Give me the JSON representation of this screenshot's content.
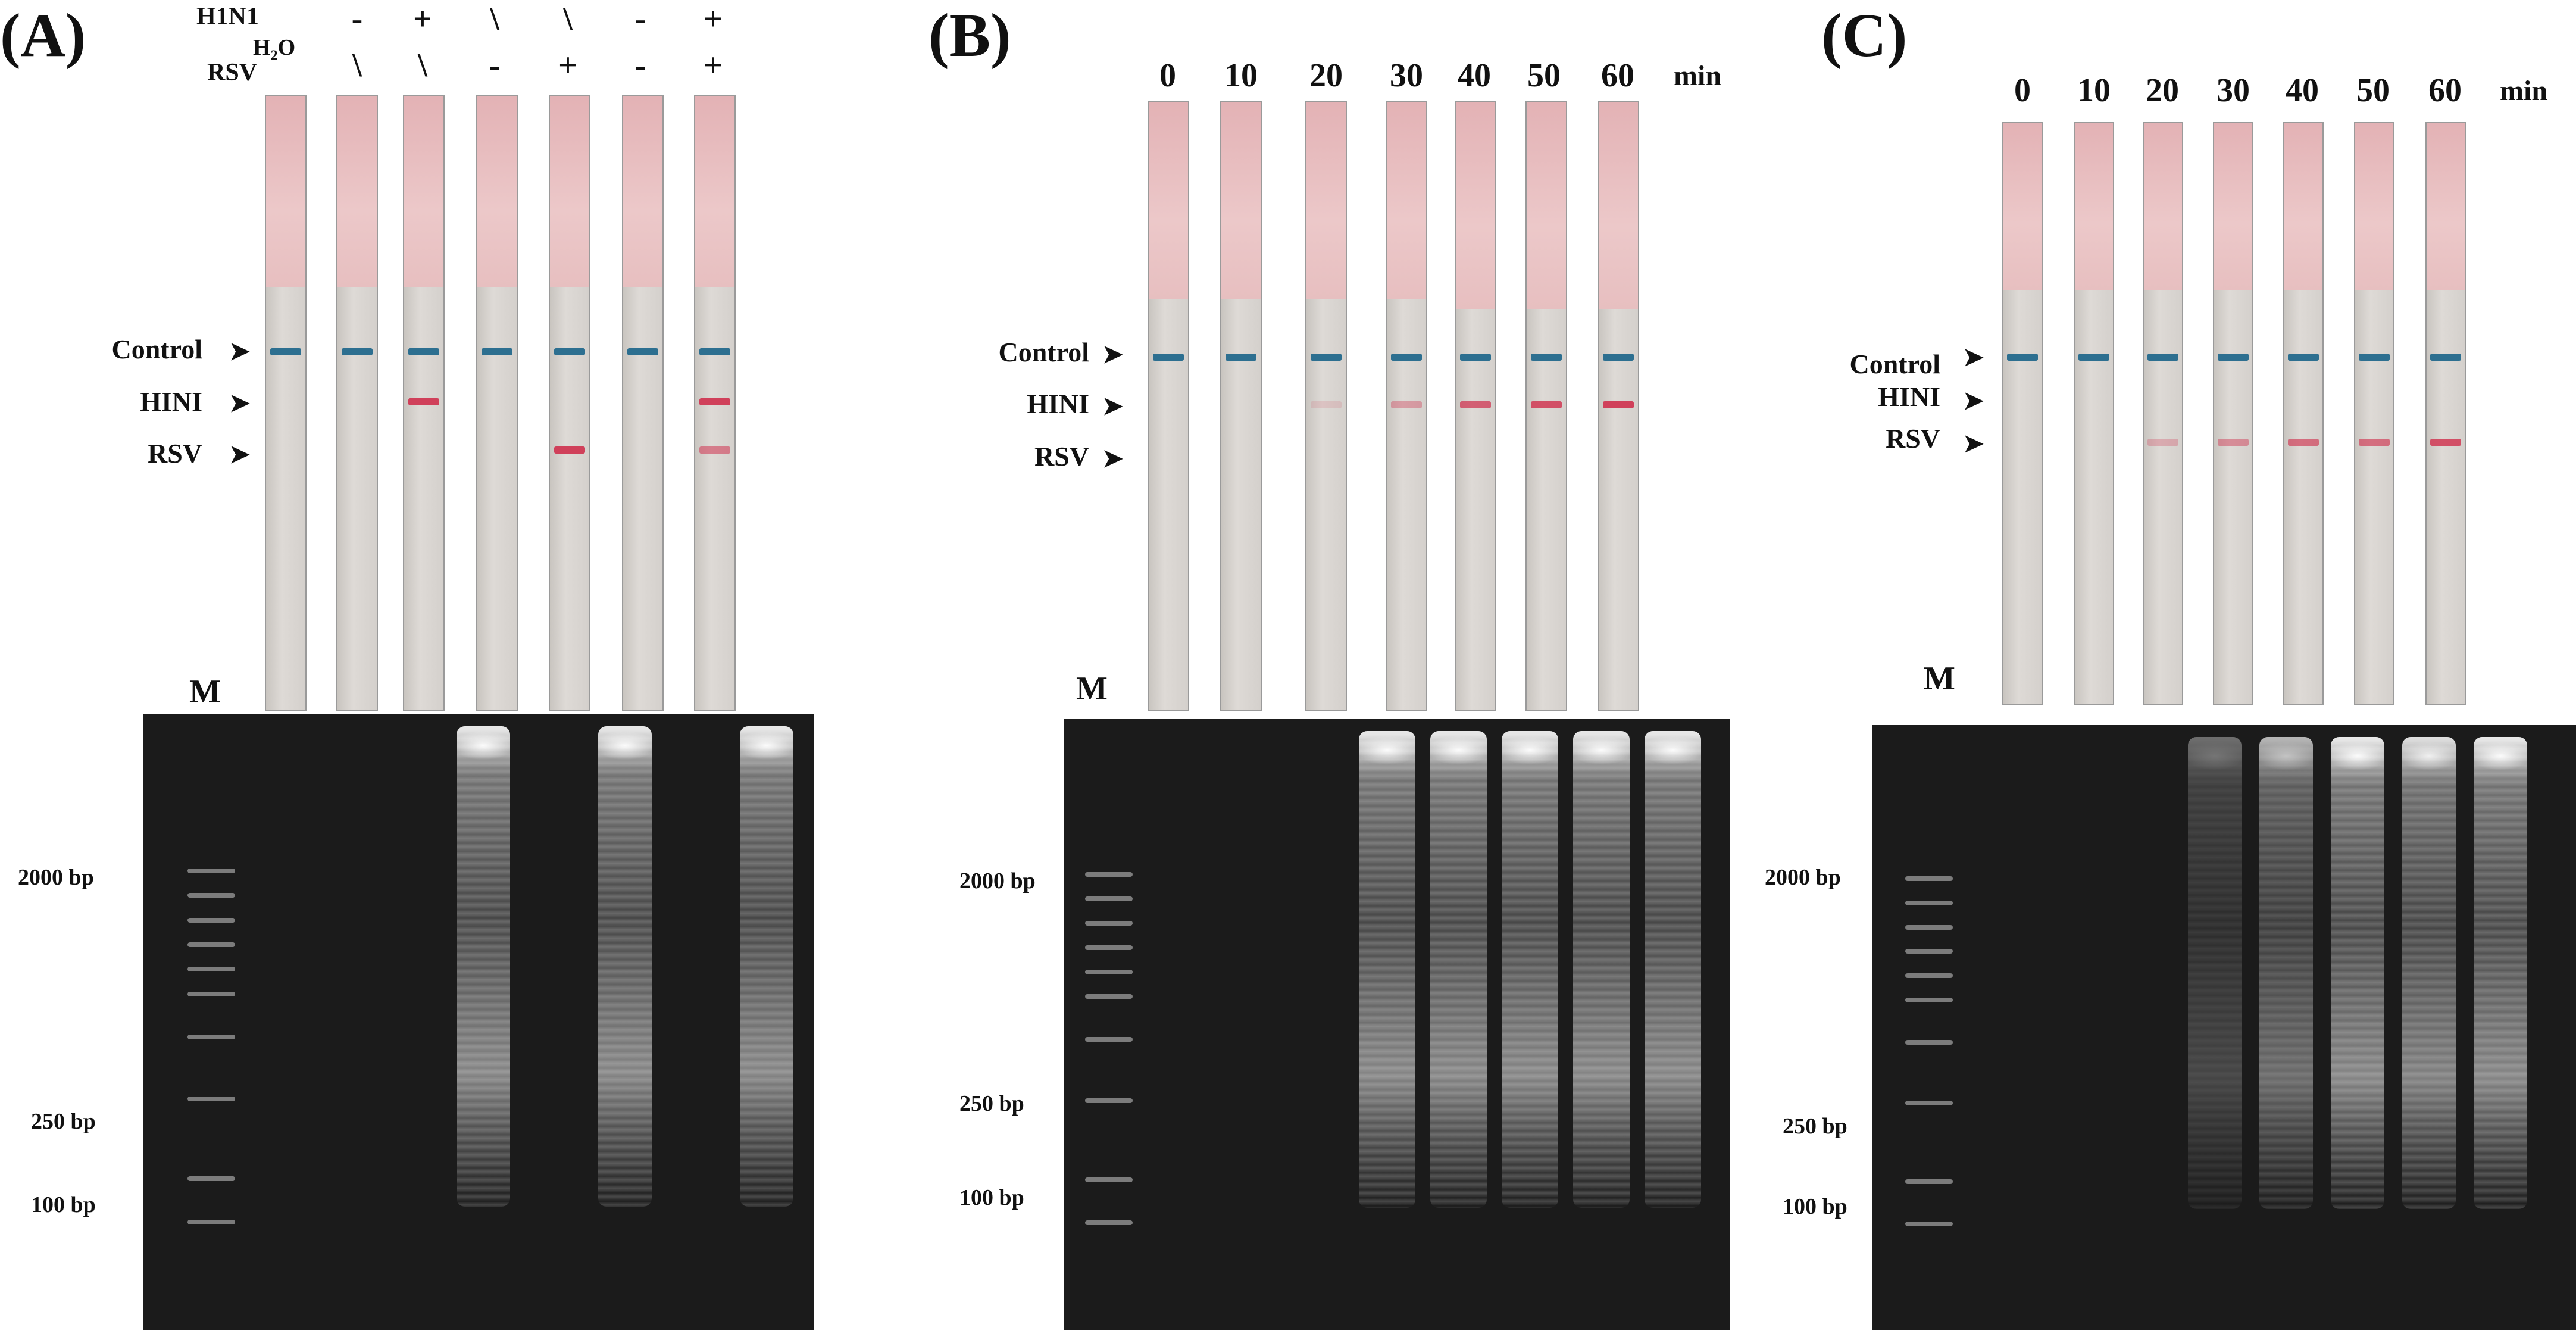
{
  "panels": {
    "A": {
      "letter": "(A)",
      "row1_label": "H1N1",
      "row2_label": "RSV",
      "water_label": "H",
      "water_sub": "2",
      "water_tail": "O",
      "row1": [
        "-",
        "+",
        "\\",
        "\\",
        "-",
        "+"
      ],
      "row2": [
        "\\",
        "\\",
        "-",
        "+",
        "-",
        "+"
      ],
      "lines": {
        "control": "Control",
        "h1n1": "HINI",
        "rsv": "RSV"
      },
      "marker": "M",
      "bp": [
        "2000 bp",
        "250 bp",
        "100 bp"
      ]
    },
    "B": {
      "letter": "(B)",
      "times": [
        "0",
        "10",
        "20",
        "30",
        "40",
        "50",
        "60"
      ],
      "unit": "min",
      "lines": {
        "control": "Control",
        "h1n1": "HINI",
        "rsv": "RSV"
      },
      "marker": "M",
      "bp": [
        "2000 bp",
        "250 bp",
        "100 bp"
      ]
    },
    "C": {
      "letter": "(C)",
      "times": [
        "0",
        "10",
        "20",
        "30",
        "40",
        "50",
        "60"
      ],
      "unit": "min",
      "lines": {
        "control": "Control",
        "h1n1": "HINI",
        "rsv": "RSV"
      },
      "marker": "M",
      "bp": [
        "2000 bp",
        "250 bp",
        "100 bp"
      ]
    }
  },
  "colors": {
    "control_band": "#2d6f90",
    "test_band": "#d0405a",
    "gel_bg": "#1b1b1b",
    "pad": "#e7bfc0"
  },
  "strip_results": {
    "A": {
      "h1n1": [
        0,
        0,
        1,
        0,
        0,
        0,
        1
      ],
      "rsv": [
        0,
        0,
        0,
        0,
        1,
        0,
        0.6
      ]
    },
    "B": {
      "h1n1": [
        0,
        0,
        0.15,
        0.4,
        0.8,
        0.9,
        1
      ],
      "rsv": [
        0,
        0,
        0,
        0,
        0,
        0,
        0
      ]
    },
    "C": {
      "h1n1": [
        0,
        0,
        0,
        0,
        0,
        0,
        0
      ],
      "rsv": [
        0,
        0,
        0.3,
        0.5,
        0.7,
        0.7,
        0.9
      ]
    }
  },
  "gel_lanes": {
    "A": [
      0,
      0,
      0,
      1,
      0,
      1,
      0,
      1
    ],
    "B": [
      0,
      0,
      0,
      1,
      1,
      1,
      1,
      1
    ],
    "C": [
      0,
      0,
      0,
      0.4,
      0.75,
      1,
      0.95,
      1,
      0
    ]
  }
}
